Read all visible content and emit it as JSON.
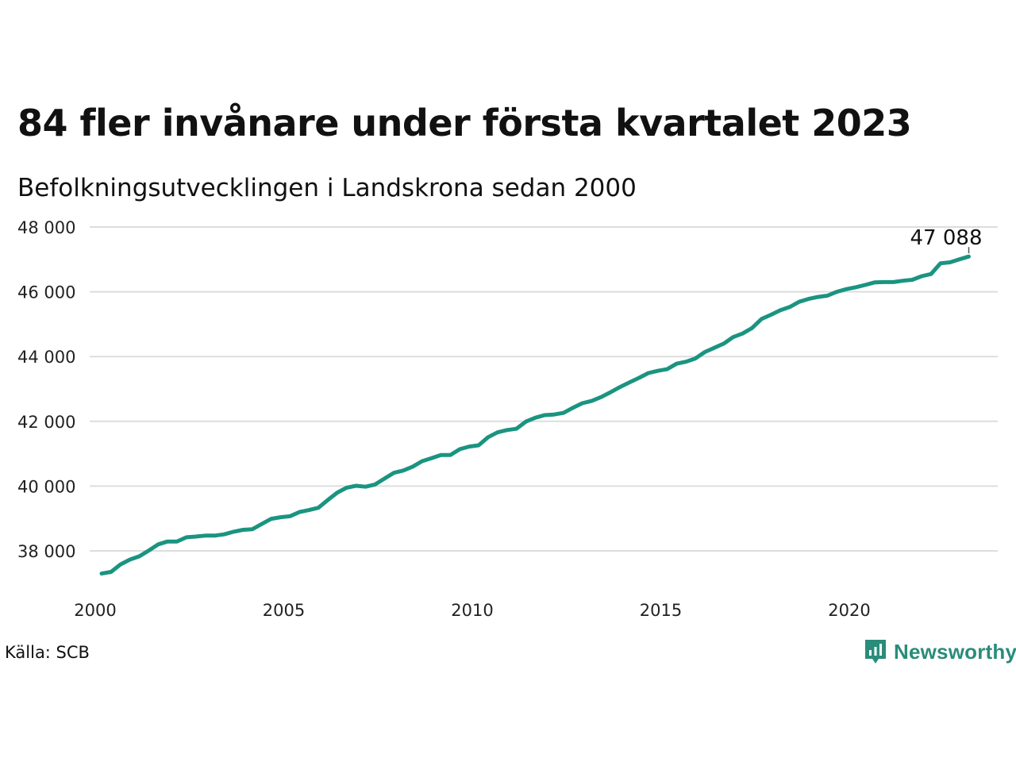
{
  "title": "84 fler invånare under första kvartalet 2023",
  "subtitle": "Befolkningsutvecklingen i Landskrona sedan 2000",
  "source": "Källa: SCB",
  "brand": {
    "name": "Newsworthy",
    "icon": "newsworthy-logo-icon",
    "color": "#2a8c7a"
  },
  "colors": {
    "line": "#1a9480",
    "grid": "#dddddd"
  },
  "chart_data": {
    "type": "line",
    "title": "84 fler invånare under första kvartalet 2023",
    "subtitle": "Befolkningsutvecklingen i Landskrona sedan 2000",
    "xlabel": "",
    "ylabel": "",
    "xlim": [
      2000,
      2024
    ],
    "ylim": [
      37000,
      48000
    ],
    "yticks": [
      38000,
      40000,
      42000,
      44000,
      46000,
      48000
    ],
    "ytick_labels": [
      "38 000",
      "40 000",
      "42 000",
      "44 000",
      "46 000",
      "48 000"
    ],
    "xticks": [
      2000,
      2005,
      2010,
      2015,
      2020
    ],
    "xtick_labels": [
      "2000",
      "2005",
      "2010",
      "2015",
      "2020"
    ],
    "grid": "horizontal",
    "end_label": "47 088",
    "series": [
      {
        "x": [
          2000.0,
          2000.25,
          2000.5,
          2000.75,
          2001.0,
          2001.25,
          2001.5,
          2001.75,
          2002.0,
          2002.25,
          2002.5,
          2002.75,
          2003.0,
          2003.25,
          2003.5,
          2003.75,
          2004.0,
          2004.25,
          2004.5,
          2004.75,
          2005.0,
          2005.25,
          2005.5,
          2005.75,
          2006.0,
          2006.25,
          2006.5,
          2006.75,
          2007.0,
          2007.25,
          2007.5,
          2007.75,
          2008.0,
          2008.25,
          2008.5,
          2008.75,
          2009.0,
          2009.25,
          2009.5,
          2009.75,
          2010.0,
          2010.25,
          2010.5,
          2010.75,
          2011.0,
          2011.25,
          2011.5,
          2011.75,
          2012.0,
          2012.25,
          2012.5,
          2012.75,
          2013.0,
          2013.25,
          2013.5,
          2013.75,
          2014.0,
          2014.25,
          2014.5,
          2014.75,
          2015.0,
          2015.25,
          2015.5,
          2015.75,
          2016.0,
          2016.25,
          2016.5,
          2016.75,
          2017.0,
          2017.25,
          2017.5,
          2017.75,
          2018.0,
          2018.25,
          2018.5,
          2018.75,
          2019.0,
          2019.25,
          2019.5,
          2019.75,
          2020.0,
          2020.25,
          2020.5,
          2020.75,
          2021.0,
          2021.25,
          2021.5,
          2021.75,
          2022.0,
          2022.25,
          2022.5,
          2022.75,
          2023.0
        ],
        "y": [
          37300,
          37350,
          37580,
          37730,
          37830,
          38010,
          38200,
          38290,
          38290,
          38420,
          38440,
          38470,
          38470,
          38510,
          38590,
          38650,
          38670,
          38830,
          38990,
          39040,
          39070,
          39200,
          39260,
          39330,
          39570,
          39800,
          39950,
          40010,
          39980,
          40050,
          40230,
          40410,
          40480,
          40600,
          40770,
          40860,
          40960,
          40960,
          41140,
          41220,
          41260,
          41510,
          41660,
          41730,
          41770,
          41990,
          42110,
          42190,
          42210,
          42260,
          42420,
          42560,
          42630,
          42750,
          42900,
          43060,
          43200,
          43340,
          43490,
          43560,
          43610,
          43780,
          43840,
          43940,
          44140,
          44270,
          44400,
          44600,
          44710,
          44880,
          45160,
          45290,
          45430,
          45530,
          45690,
          45780,
          45840,
          45880,
          46000,
          46080,
          46140,
          46210,
          46290,
          46300,
          46300,
          46340,
          46370,
          46480,
          46550,
          46880,
          46910,
          47000,
          47088
        ]
      }
    ]
  }
}
